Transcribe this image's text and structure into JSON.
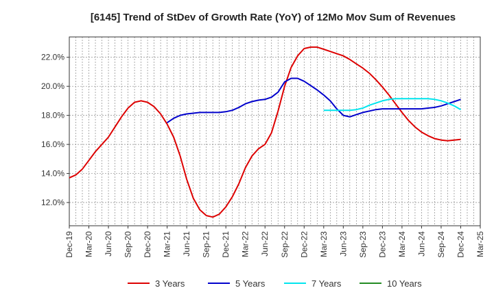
{
  "chart_data": {
    "type": "line",
    "title": "[6145]  Trend of StDev of Growth Rate (YoY) of 12Mo Mov Sum of Revenues",
    "xlabel": "",
    "ylabel": "",
    "x_ticks": [
      "Dec-19",
      "Mar-20",
      "Jun-20",
      "Sep-20",
      "Dec-20",
      "Mar-21",
      "Jun-21",
      "Sep-21",
      "Dec-21",
      "Mar-22",
      "Jun-22",
      "Sep-22",
      "Dec-22",
      "Mar-23",
      "Jun-23",
      "Sep-23",
      "Dec-23",
      "Mar-24",
      "Jun-24",
      "Sep-24",
      "Dec-24",
      "Mar-25"
    ],
    "y_ticks": [
      "12.0%",
      "14.0%",
      "16.0%",
      "18.0%",
      "20.0%",
      "22.0%"
    ],
    "y_tick_values": [
      12,
      14,
      16,
      18,
      20,
      22
    ],
    "ylim": [
      10.4,
      23.4
    ],
    "x_range": [
      0,
      63
    ],
    "grid": true,
    "legend_position": "bottom",
    "series": [
      {
        "name": "3 Years",
        "color": "#dd0000",
        "x": [
          0,
          1,
          2,
          3,
          4,
          5,
          6,
          7,
          8,
          9,
          10,
          11,
          12,
          13,
          14,
          15,
          16,
          17,
          18,
          19,
          20,
          21,
          22,
          23,
          24,
          25,
          26,
          27,
          28,
          29,
          30,
          31,
          32,
          33,
          34,
          35,
          36,
          37,
          38,
          39,
          40,
          41,
          42,
          43,
          44,
          45,
          46,
          47,
          48,
          49,
          50,
          51,
          52,
          53,
          54,
          55,
          56,
          57,
          58,
          59,
          60
        ],
        "values": [
          13.7,
          13.9,
          14.3,
          14.9,
          15.5,
          16.0,
          16.5,
          17.2,
          17.9,
          18.5,
          18.9,
          19.0,
          18.9,
          18.6,
          18.1,
          17.4,
          16.5,
          15.2,
          13.6,
          12.3,
          11.5,
          11.1,
          11.0,
          11.2,
          11.7,
          12.4,
          13.3,
          14.4,
          15.2,
          15.7,
          16.0,
          16.8,
          18.3,
          20.0,
          21.3,
          22.1,
          22.6,
          22.7,
          22.7,
          22.55,
          22.4,
          22.25,
          22.1,
          21.85,
          21.55,
          21.25,
          20.9,
          20.45,
          19.95,
          19.4,
          18.8,
          18.2,
          17.65,
          17.2,
          16.85,
          16.6,
          16.4,
          16.3,
          16.25,
          16.3,
          16.35
        ]
      },
      {
        "name": "5 Years",
        "color": "#0000cc",
        "x": [
          15,
          16,
          17,
          18,
          19,
          20,
          21,
          22,
          23,
          24,
          25,
          26,
          27,
          28,
          29,
          30,
          31,
          32,
          33,
          34,
          35,
          36,
          37,
          38,
          39,
          40,
          41,
          42,
          43,
          44,
          45,
          46,
          47,
          48,
          49,
          50,
          51,
          52,
          53,
          54,
          55,
          56,
          57,
          58,
          59,
          60
        ],
        "values": [
          17.5,
          17.8,
          18.0,
          18.1,
          18.15,
          18.2,
          18.2,
          18.2,
          18.2,
          18.25,
          18.35,
          18.55,
          18.8,
          18.95,
          19.05,
          19.1,
          19.25,
          19.6,
          20.3,
          20.55,
          20.55,
          20.35,
          20.05,
          19.75,
          19.4,
          19.0,
          18.45,
          18.0,
          17.9,
          18.05,
          18.2,
          18.3,
          18.4,
          18.45,
          18.45,
          18.45,
          18.45,
          18.45,
          18.45,
          18.45,
          18.5,
          18.55,
          18.65,
          18.8,
          18.95,
          19.1
        ]
      },
      {
        "name": "7 Years",
        "color": "#00e5ee",
        "x": [
          39,
          40,
          41,
          42,
          43,
          44,
          45,
          46,
          47,
          48,
          49,
          50,
          51,
          52,
          53,
          54,
          55,
          56,
          57,
          58,
          59,
          60
        ],
        "values": [
          18.35,
          18.35,
          18.35,
          18.35,
          18.35,
          18.4,
          18.5,
          18.7,
          18.85,
          19.0,
          19.1,
          19.15,
          19.15,
          19.15,
          19.15,
          19.15,
          19.15,
          19.1,
          19.0,
          18.85,
          18.65,
          18.4
        ]
      },
      {
        "name": "10 Years",
        "color": "#228b22",
        "x": [],
        "values": []
      }
    ]
  }
}
